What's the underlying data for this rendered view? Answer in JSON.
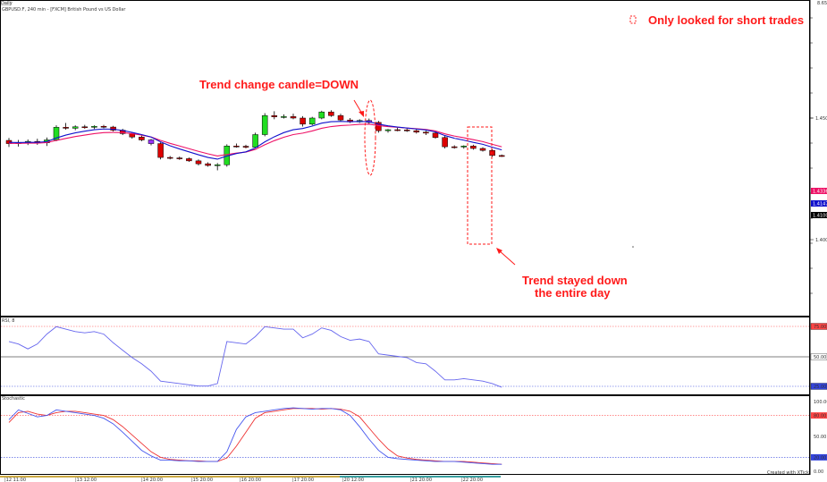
{
  "header": {
    "tab_label": "Daily",
    "title": "GBPUSD.F, 240 min - [FXCM] British Pound vs US Dollar"
  },
  "annotations": {
    "legend_note": "Only looked for short trades",
    "trend_change": "Trend change candle=DOWN",
    "trend_stayed_line1": "Trend stayed down",
    "trend_stayed_line2": "the entire day"
  },
  "footer": {
    "credit": "Created with XTick"
  },
  "colors": {
    "bull": "#22dd22",
    "bear": "#dd0000",
    "signal": "#9933ff",
    "fast_ma": "#1111cc",
    "slow_ma": "#ee1166",
    "rsi_line": "#6666ee",
    "stoch_k": "#4455ee",
    "stoch_d": "#ee3333",
    "annotation": "#ff1a1a"
  },
  "chart_data": [
    {
      "type": "candlestick",
      "panel": "price",
      "x": [
        "|12 11:00",
        "",
        "",
        "",
        "",
        "",
        "|13 12:00",
        "",
        "",
        "",
        "",
        "",
        "|14 20:00",
        "",
        "",
        "",
        "",
        "",
        "|15 20:00",
        "",
        "",
        "",
        "",
        "",
        "|16 20:00",
        "",
        "",
        "",
        "",
        "",
        "|17 20:00",
        "",
        "",
        "",
        "",
        "",
        "|20 12:00",
        "",
        "",
        "",
        "",
        "",
        "|21 20:00",
        "",
        "",
        "",
        "",
        "",
        "|22 20:00"
      ],
      "x_tick_labels": [
        "|12 11:00",
        "|13 12:00",
        "|14 20:00",
        "|15 20:00",
        "|16 20:00",
        "|17 20:00",
        "|20 12:00",
        "|21 20:00",
        "|22 20:00"
      ],
      "ohlc": [
        [
          1.4408,
          1.4418,
          1.4381,
          1.4395
        ],
        [
          1.4395,
          1.441,
          1.4383,
          1.44
        ],
        [
          1.44,
          1.4412,
          1.4389,
          1.4404
        ],
        [
          1.4404,
          1.4415,
          1.439,
          1.4398
        ],
        [
          1.4398,
          1.442,
          1.4385,
          1.441
        ],
        [
          1.441,
          1.447,
          1.4405,
          1.4462
        ],
        [
          1.4462,
          1.448,
          1.4452,
          1.4458
        ],
        [
          1.4458,
          1.447,
          1.445,
          1.4464
        ],
        [
          1.4464,
          1.4472,
          1.4456,
          1.4462
        ],
        [
          1.4462,
          1.447,
          1.4455,
          1.4466
        ],
        [
          1.4466,
          1.4472,
          1.4458,
          1.4463
        ],
        [
          1.4463,
          1.4468,
          1.4445,
          1.445
        ],
        [
          1.445,
          1.4456,
          1.443,
          1.4436
        ],
        [
          1.4436,
          1.444,
          1.4415,
          1.4422
        ],
        [
          1.4422,
          1.4428,
          1.4405,
          1.441
        ],
        [
          1.441,
          1.4414,
          1.4388,
          1.4395
        ],
        [
          1.4395,
          1.44,
          1.433,
          1.4338
        ],
        [
          1.4338,
          1.4344,
          1.433,
          1.4336
        ],
        [
          1.4336,
          1.4342,
          1.4328,
          1.4333
        ],
        [
          1.4333,
          1.4338,
          1.432,
          1.4324
        ],
        [
          1.4324,
          1.433,
          1.4305,
          1.4312
        ],
        [
          1.4312,
          1.4318,
          1.43,
          1.4305
        ],
        [
          1.4305,
          1.4315,
          1.4285,
          1.4308
        ],
        [
          1.4308,
          1.4392,
          1.43,
          1.4385
        ],
        [
          1.4385,
          1.4395,
          1.4378,
          1.4384
        ],
        [
          1.4384,
          1.439,
          1.4375,
          1.438
        ],
        [
          1.438,
          1.444,
          1.4378,
          1.4432
        ],
        [
          1.4432,
          1.452,
          1.4425,
          1.451
        ],
        [
          1.451,
          1.4528,
          1.4495,
          1.4505
        ],
        [
          1.4505,
          1.4515,
          1.4498,
          1.4506
        ],
        [
          1.4506,
          1.4518,
          1.4495,
          1.45
        ],
        [
          1.45,
          1.4508,
          1.4465,
          1.4475
        ],
        [
          1.4475,
          1.4505,
          1.447,
          1.45
        ],
        [
          1.45,
          1.453,
          1.4495,
          1.4525
        ],
        [
          1.4525,
          1.4532,
          1.4505,
          1.451
        ],
        [
          1.451,
          1.4518,
          1.4485,
          1.4492
        ],
        [
          1.4492,
          1.45,
          1.448,
          1.4484
        ],
        [
          1.4484,
          1.4495,
          1.448,
          1.449
        ],
        [
          1.449,
          1.4498,
          1.4476,
          1.4482
        ],
        [
          1.4482,
          1.4488,
          1.444,
          1.4448
        ],
        [
          1.4448,
          1.4455,
          1.444,
          1.4452
        ],
        [
          1.4452,
          1.446,
          1.4446,
          1.4451
        ],
        [
          1.4451,
          1.4457,
          1.4443,
          1.4448
        ],
        [
          1.4448,
          1.4455,
          1.4436,
          1.4442
        ],
        [
          1.4442,
          1.4448,
          1.443,
          1.4438
        ],
        [
          1.4438,
          1.4444,
          1.4415,
          1.442
        ],
        [
          1.442,
          1.4426,
          1.4375,
          1.4382
        ],
        [
          1.4382,
          1.4388,
          1.4374,
          1.4381
        ],
        [
          1.4381,
          1.4388,
          1.4374,
          1.4385
        ],
        [
          1.4385,
          1.439,
          1.437,
          1.4375
        ],
        [
          1.4375,
          1.438,
          1.4362,
          1.4367
        ],
        [
          1.4367,
          1.4372,
          1.434,
          1.4346
        ],
        [
          1.4346,
          1.435,
          1.434,
          1.4342
        ]
      ],
      "signal_candle_indices": [
        15,
        38
      ],
      "fast_ma": [
        1.44,
        1.4399,
        1.44,
        1.44,
        1.4403,
        1.4418,
        1.443,
        1.4439,
        1.4446,
        1.4452,
        1.4455,
        1.4454,
        1.4449,
        1.4441,
        1.4432,
        1.4422,
        1.4402,
        1.4386,
        1.4373,
        1.4361,
        1.4349,
        1.4338,
        1.4331,
        1.4344,
        1.4354,
        1.4361,
        1.4377,
        1.4402,
        1.4423,
        1.444,
        1.4452,
        1.4457,
        1.4467,
        1.4479,
        1.4485,
        1.4486,
        1.4485,
        1.4486,
        1.4485,
        1.4475,
        1.4468,
        1.4463,
        1.4459,
        1.4455,
        1.4451,
        1.4443,
        1.4428,
        1.4417,
        1.4409,
        1.44,
        1.4392,
        1.438,
        1.4369
      ],
      "slow_ma": [
        1.4396,
        1.4396,
        1.4397,
        1.4397,
        1.4399,
        1.4408,
        1.4416,
        1.4424,
        1.443,
        1.4436,
        1.444,
        1.4441,
        1.444,
        1.4436,
        1.443,
        1.4422,
        1.4408,
        1.4396,
        1.4385,
        1.4374,
        1.4363,
        1.4353,
        1.4344,
        1.435,
        1.4356,
        1.436,
        1.4371,
        1.439,
        1.4407,
        1.4421,
        1.4432,
        1.4438,
        1.4447,
        1.4458,
        1.4465,
        1.4469,
        1.4471,
        1.4474,
        1.4475,
        1.4469,
        1.4465,
        1.4462,
        1.4459,
        1.4456,
        1.4453,
        1.4447,
        1.4435,
        1.4426,
        1.4419,
        1.4411,
        1.4403,
        1.4392,
        1.4382
      ],
      "y_tick_labels": [
        "1.4500",
        "1.4000"
      ],
      "price_tags": [
        "1.4336",
        "1.4147",
        "1.4100"
      ],
      "top_right_tag": "8.65"
    },
    {
      "type": "line",
      "panel": "RSI",
      "title": "RSI, 8",
      "levels": [
        70,
        50,
        30
      ],
      "level_labels": [
        "75.00",
        "50.00",
        "25.00"
      ],
      "values": [
        62,
        60,
        56,
        60,
        68,
        74,
        72,
        70,
        69,
        70,
        68,
        61,
        55,
        49,
        44,
        38,
        30,
        29,
        28,
        27,
        26,
        26,
        28,
        62,
        61,
        60,
        66,
        74,
        73,
        72,
        72,
        65,
        68,
        73,
        71,
        66,
        63,
        64,
        62,
        52,
        51,
        50,
        49,
        45,
        44,
        38,
        31,
        31,
        32,
        31,
        30,
        28,
        25
      ]
    },
    {
      "type": "line",
      "panel": "Stochastic",
      "title": "Stochastic",
      "levels": [
        80,
        20
      ],
      "level_labels": [
        "100.00",
        "80.00",
        "50.00",
        "20.00",
        "0.00"
      ],
      "k": [
        74,
        88,
        83,
        78,
        80,
        88,
        86,
        84,
        82,
        80,
        76,
        68,
        56,
        43,
        30,
        22,
        16,
        16,
        15,
        15,
        14,
        14,
        14,
        28,
        60,
        78,
        84,
        86,
        88,
        90,
        91,
        90,
        89,
        90,
        90,
        88,
        80,
        64,
        46,
        30,
        20,
        18,
        17,
        16,
        15,
        14,
        14,
        14,
        13,
        12,
        11,
        10,
        10
      ],
      "d": [
        70,
        84,
        86,
        82,
        80,
        84,
        86,
        86,
        84,
        82,
        80,
        74,
        64,
        52,
        40,
        28,
        20,
        17,
        16,
        15,
        15,
        14,
        14,
        19,
        36,
        56,
        76,
        84,
        86,
        88,
        90,
        90,
        90,
        89,
        90,
        89,
        86,
        78,
        62,
        46,
        32,
        22,
        19,
        17,
        16,
        15,
        14,
        14,
        14,
        13,
        12,
        11,
        10
      ]
    }
  ]
}
